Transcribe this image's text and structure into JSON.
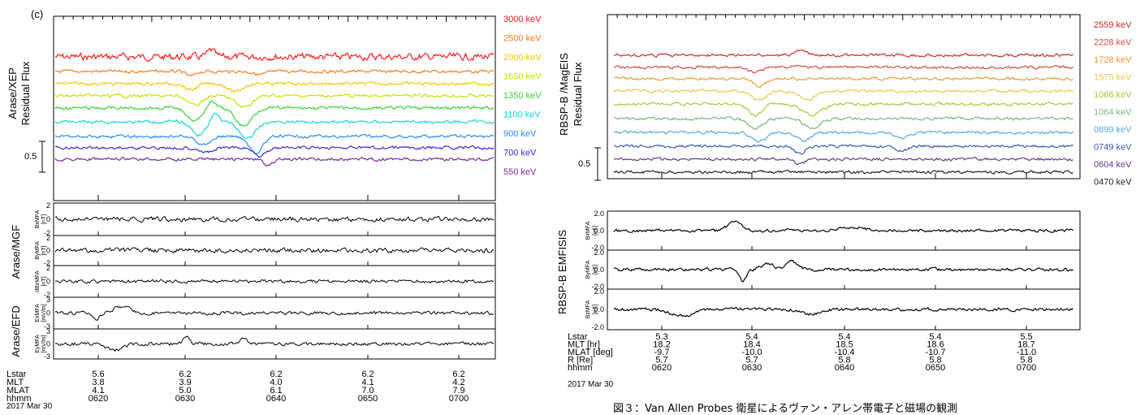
{
  "left": {
    "panel_label": "(c)",
    "ylabel_top": "Arase/XEP",
    "ylabel_sub": "Residual Flux",
    "scale_value": "0.5",
    "flux_channels": [
      {
        "label": "3000 keV",
        "color": "#ff1a1a"
      },
      {
        "label": "2500 keV",
        "color": "#ff7a1a"
      },
      {
        "label": "2000 keV",
        "color": "#f5c400"
      },
      {
        "label": "1650 keV",
        "color": "#c8e000"
      },
      {
        "label": "1350 keV",
        "color": "#3ad03a"
      },
      {
        "label": "1100 keV",
        "color": "#16d6d0"
      },
      {
        "label": "900 keV",
        "color": "#2a8cf0"
      },
      {
        "label": "700 keV",
        "color": "#3a2ad8"
      },
      {
        "label": "550 keV",
        "color": "#7a2a9a"
      }
    ],
    "mgf_label": "Arase/MGF",
    "efd_label": "Arase/EFD",
    "field_panels": [
      {
        "name": "BxMFA",
        "unit": "[nT]",
        "ticks": [
          "2",
          "0",
          "-2"
        ]
      },
      {
        "name": "ByMFA",
        "unit": "[nT]",
        "ticks": [
          "2",
          "0",
          "-2"
        ]
      },
      {
        "name": "dBzMFA",
        "unit": "[nT]",
        "ticks": [
          "2",
          "0",
          "-2"
        ]
      },
      {
        "name": "ExMFA",
        "unit": "[mV/m]",
        "ticks": [
          "3",
          "0",
          "-3"
        ]
      },
      {
        "name": "EyMFA",
        "unit": "[mV/m]",
        "ticks": [
          "3",
          "0",
          "-3"
        ]
      }
    ],
    "ephem_labels": [
      "Lstar",
      "MLT",
      "MLAT",
      "hhmm"
    ],
    "ephem_columns": [
      [
        "5.6",
        "3.8",
        "4.1",
        "0620"
      ],
      [
        "6.2",
        "3.9",
        "5.0",
        "0630"
      ],
      [
        "6.2",
        "4.0",
        "6.1",
        "0640"
      ],
      [
        "6.2",
        "4.1",
        "7.0",
        "0650"
      ],
      [
        "6.2",
        "4.2",
        "7.9",
        "0700"
      ]
    ],
    "date": "2017 Mar 30"
  },
  "right": {
    "ylabel_top": "RBSP-B /MagEIS",
    "ylabel_sub": "Residual Flux",
    "scale_value": "0.5",
    "flux_channels": [
      {
        "label": "2559 keV",
        "color": "#d02a2a"
      },
      {
        "label": "2228 keV",
        "color": "#d0503a"
      },
      {
        "label": "1728 keV",
        "color": "#e89a3a"
      },
      {
        "label": "1575 keV",
        "color": "#e8c84a"
      },
      {
        "label": "1066 keV",
        "color": "#a8c83a"
      },
      {
        "label": "1064 keV",
        "color": "#7ab87a"
      },
      {
        "label": "0899 keV",
        "color": "#5aa8d8"
      },
      {
        "label": "0749 keV",
        "color": "#3a5ab0"
      },
      {
        "label": "0604 keV",
        "color": "#6a3a8a"
      },
      {
        "label": "0470 keV",
        "color": "#222222"
      }
    ],
    "field_label": "RBSP-B EMFISIS",
    "field_panels": [
      {
        "name": "BxMFA",
        "unit": "[nT]",
        "ticks": [
          "2.0",
          "0.0",
          "-2.0"
        ]
      },
      {
        "name": "ByMFA",
        "unit": "[nT]",
        "ticks": [
          "2.0",
          "0.0",
          "-2.0"
        ]
      },
      {
        "name": "BzMFA",
        "unit": "[nT]",
        "ticks": [
          "2.0",
          "0.0",
          "-2.0"
        ]
      }
    ],
    "ephem_labels": [
      "Lstar",
      "MLT [hr]",
      "MLAT [deg]",
      "R [Re]",
      "hhmm"
    ],
    "ephem_columns": [
      [
        "5.3",
        "18.2",
        "-9.7",
        "5.7",
        "0620"
      ],
      [
        "5.4",
        "18.4",
        "-10.0",
        "5.7",
        "0630"
      ],
      [
        "5.4",
        "18.5",
        "-10.4",
        "5.8",
        "0640"
      ],
      [
        "5.4",
        "18.6",
        "-10.7",
        "5.8",
        "0650"
      ],
      [
        "5.5",
        "18.7",
        "-11.0",
        "5.8",
        "0700"
      ]
    ],
    "date": "2017 Mar 30"
  },
  "caption": "図３：Van Allen Probes 衛星によるヴァン・アレン帯電子と磁場の観測",
  "chart_data": [
    {
      "type": "line",
      "panel": "(c)",
      "x_time_ticks": [
        "0620",
        "0630",
        "0640",
        "0650",
        "0700"
      ],
      "ylabel": "Arase/XEP Residual Flux",
      "series": [
        {
          "name": "3000 keV"
        },
        {
          "name": "2500 keV"
        },
        {
          "name": "2000 keV"
        },
        {
          "name": "1650 keV"
        },
        {
          "name": "1350 keV"
        },
        {
          "name": "1100 keV"
        },
        {
          "name": "900 keV"
        },
        {
          "name": "700 keV"
        },
        {
          "name": "550 keV"
        }
      ],
      "sub_panels": [
        "Arase/MGF",
        "Arase/EFD"
      ]
    },
    {
      "type": "line",
      "x_time_ticks": [
        "0620",
        "0630",
        "0640",
        "0650",
        "0700"
      ],
      "ylabel": "RBSP-B /MagEIS Residual Flux",
      "series": [
        {
          "name": "2559 keV"
        },
        {
          "name": "2228 keV"
        },
        {
          "name": "1728 keV"
        },
        {
          "name": "1575 keV"
        },
        {
          "name": "1066 keV"
        },
        {
          "name": "1064 keV"
        },
        {
          "name": "0899 keV"
        },
        {
          "name": "0749 keV"
        },
        {
          "name": "0604 keV"
        },
        {
          "name": "0470 keV"
        }
      ],
      "sub_panels": [
        "RBSP-B EMFISIS"
      ]
    }
  ]
}
